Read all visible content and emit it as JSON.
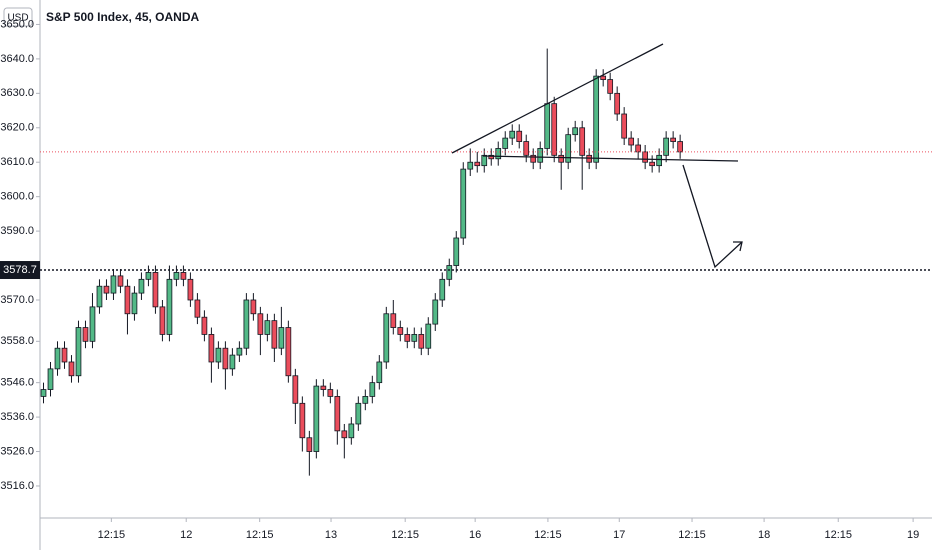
{
  "chart_data": {
    "type": "candlestick",
    "title": "S&P 500 Index, 45, OANDA",
    "currency": "USD",
    "up_color": "#53b987",
    "down_color": "#eb4d5c",
    "open": [
      3542,
      3544,
      3550,
      3556,
      3552,
      3548,
      3562,
      3558,
      3568,
      3574,
      3572,
      3577,
      3574,
      3566,
      3572,
      3576,
      3578,
      3568,
      3560,
      3576,
      3578,
      3576,
      3570,
      3565,
      3560,
      3552,
      3556,
      3550,
      3554,
      3556,
      3570,
      3566,
      3560,
      3564,
      3556,
      3562,
      3548,
      3540,
      3530,
      3526,
      3545,
      3544,
      3542,
      3532,
      3530,
      3534,
      3540,
      3542,
      3546,
      3552,
      3566,
      3562,
      3560,
      3558,
      3560,
      3556,
      3563,
      3570,
      3576,
      3580,
      3588,
      3608,
      3610,
      3609,
      3612,
      3611,
      3614,
      3617,
      3619,
      3616,
      3612,
      3610,
      3614,
      3627,
      3612,
      3610,
      3618,
      3620,
      3612,
      3610,
      3635,
      3634,
      3630,
      3624,
      3617,
      3615,
      3613,
      3610,
      3609,
      3612,
      3617,
      3616
    ],
    "high": [
      3546,
      3552,
      3558,
      3558,
      3554,
      3564,
      3564,
      3572,
      3576,
      3576,
      3579,
      3579,
      3576,
      3574,
      3578,
      3580,
      3580,
      3570,
      3580,
      3580,
      3580,
      3578,
      3572,
      3567,
      3562,
      3558,
      3558,
      3556,
      3558,
      3572,
      3572,
      3568,
      3566,
      3566,
      3568,
      3564,
      3550,
      3542,
      3532,
      3547,
      3547,
      3546,
      3544,
      3534,
      3536,
      3542,
      3544,
      3548,
      3554,
      3568,
      3570,
      3564,
      3562,
      3562,
      3562,
      3565,
      3572,
      3578,
      3582,
      3590,
      3610,
      3614,
      3613,
      3614,
      3614,
      3616,
      3619,
      3621,
      3621,
      3618,
      3614,
      3616,
      3643,
      3629,
      3614,
      3620,
      3622,
      3622,
      3614,
      3637,
      3637,
      3636,
      3632,
      3626,
      3619,
      3617,
      3615,
      3612,
      3614,
      3619,
      3619,
      3618
    ],
    "low": [
      3540,
      3542,
      3548,
      3550,
      3546,
      3546,
      3556,
      3556,
      3566,
      3570,
      3570,
      3572,
      3560,
      3564,
      3570,
      3574,
      3566,
      3558,
      3558,
      3574,
      3574,
      3568,
      3563,
      3558,
      3546,
      3550,
      3544,
      3548,
      3552,
      3554,
      3564,
      3554,
      3558,
      3552,
      3554,
      3546,
      3534,
      3526,
      3519,
      3524,
      3542,
      3540,
      3528,
      3524,
      3528,
      3532,
      3538,
      3540,
      3544,
      3550,
      3560,
      3558,
      3556,
      3556,
      3554,
      3554,
      3561,
      3568,
      3574,
      3578,
      3586,
      3606,
      3607,
      3607,
      3609,
      3609,
      3612,
      3615,
      3614,
      3610,
      3608,
      3608,
      3612,
      3610,
      3602,
      3608,
      3616,
      3602,
      3608,
      3608,
      3632,
      3628,
      3622,
      3615,
      3613,
      3611,
      3608,
      3607,
      3607,
      3610,
      3614,
      3611
    ],
    "close": [
      3544,
      3550,
      3556,
      3552,
      3548,
      3562,
      3558,
      3568,
      3574,
      3572,
      3577,
      3574,
      3566,
      3572,
      3576,
      3578,
      3568,
      3560,
      3576,
      3578,
      3576,
      3570,
      3565,
      3560,
      3552,
      3556,
      3550,
      3554,
      3556,
      3570,
      3566,
      3560,
      3564,
      3556,
      3562,
      3548,
      3540,
      3530,
      3526,
      3545,
      3544,
      3542,
      3532,
      3530,
      3534,
      3540,
      3542,
      3546,
      3552,
      3566,
      3562,
      3560,
      3558,
      3560,
      3556,
      3563,
      3570,
      3576,
      3580,
      3588,
      3608,
      3610,
      3609,
      3612,
      3611,
      3614,
      3617,
      3619,
      3616,
      3612,
      3610,
      3614,
      3627,
      3612,
      3610,
      3618,
      3620,
      3612,
      3610,
      3635,
      3634,
      3630,
      3624,
      3617,
      3615,
      3613,
      3610,
      3609,
      3612,
      3617,
      3616,
      3613
    ],
    "xlim": [
      -0.5,
      127
    ],
    "xticks": [
      {
        "value": 9.7,
        "label": "12:15"
      },
      {
        "value": 20.4,
        "label": "12"
      },
      {
        "value": 30.9,
        "label": "12:15"
      },
      {
        "value": 41.1,
        "label": "13"
      },
      {
        "value": 51.7,
        "label": "12:15"
      },
      {
        "value": 61.7,
        "label": "16"
      },
      {
        "value": 72.1,
        "label": "12:15"
      },
      {
        "value": 82.3,
        "label": "17"
      },
      {
        "value": 92.7,
        "label": "12:15"
      },
      {
        "value": 103,
        "label": "18"
      },
      {
        "value": 113.6,
        "label": "12:15"
      },
      {
        "value": 124.3,
        "label": "19"
      }
    ],
    "ylim": [
      3506.7,
      3657.1
    ],
    "yticks": [
      {
        "value": 3516,
        "label": "3516.0"
      },
      {
        "value": 3526,
        "label": "3526.0"
      },
      {
        "value": 3536,
        "label": "3536.0"
      },
      {
        "value": 3546,
        "label": "3546.0"
      },
      {
        "value": 3558,
        "label": "3558.0"
      },
      {
        "value": 3570,
        "label": "3570.0"
      },
      {
        "value": 3590,
        "label": "3590.0"
      },
      {
        "value": 3600,
        "label": "3600.0"
      },
      {
        "value": 3610,
        "label": "3610.0"
      },
      {
        "value": 3620,
        "label": "3620.0"
      },
      {
        "value": 3630,
        "label": "3630.0"
      },
      {
        "value": 3640,
        "label": "3640.0"
      },
      {
        "value": 3650,
        "label": "3650.0"
      }
    ],
    "price_line": 3578.7
  }
}
